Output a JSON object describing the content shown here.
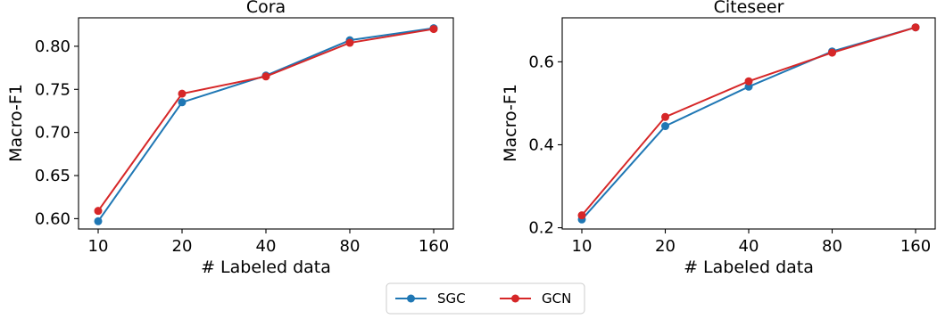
{
  "colors": {
    "SGC": "#1f77b4",
    "GCN": "#d62728"
  },
  "legend": [
    {
      "name": "SGC",
      "color_key": "SGC"
    },
    {
      "name": "GCN",
      "color_key": "GCN"
    }
  ],
  "chart_data": [
    {
      "type": "line",
      "title": "Cora",
      "xlabel": "# Labeled data",
      "ylabel": "Macro-F1",
      "categories": [
        "10",
        "20",
        "40",
        "80",
        "160"
      ],
      "ylim": [
        0.588,
        0.833
      ],
      "yticks": [
        "0.60",
        "0.65",
        "0.70",
        "0.75",
        "0.80"
      ],
      "series": [
        {
          "name": "SGC",
          "values": [
            0.597,
            0.735,
            0.766,
            0.807,
            0.821
          ]
        },
        {
          "name": "GCN",
          "values": [
            0.609,
            0.745,
            0.765,
            0.804,
            0.82
          ]
        }
      ]
    },
    {
      "type": "line",
      "title": "Citeseer",
      "xlabel": "# Labeled data",
      "ylabel": "Macro-F1",
      "categories": [
        "10",
        "20",
        "40",
        "80",
        "160"
      ],
      "ylim": [
        0.197,
        0.706
      ],
      "yticks": [
        "0.2",
        "0.4",
        "0.6"
      ],
      "series": [
        {
          "name": "SGC",
          "values": [
            0.22,
            0.445,
            0.54,
            0.625,
            0.683
          ]
        },
        {
          "name": "GCN",
          "values": [
            0.23,
            0.467,
            0.553,
            0.622,
            0.683
          ]
        }
      ]
    }
  ]
}
